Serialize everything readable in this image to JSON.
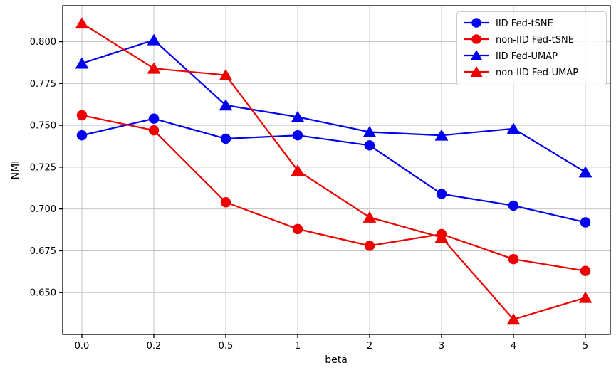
{
  "chart_data": {
    "type": "line",
    "title": "",
    "xlabel": "beta",
    "ylabel": "NMI",
    "categories": [
      "0.0",
      "0.2",
      "0.5",
      "1",
      "2",
      "3",
      "4",
      "5"
    ],
    "series": [
      {
        "name": "IID Fed-tSNE",
        "color": "#0000ee",
        "marker": "circle",
        "values": [
          0.744,
          0.754,
          0.742,
          0.744,
          0.738,
          0.709,
          0.702,
          0.692
        ]
      },
      {
        "name": "non-IID Fed-tSNE",
        "color": "#ee0000",
        "marker": "circle",
        "values": [
          0.756,
          0.747,
          0.704,
          0.688,
          0.678,
          0.685,
          0.67,
          0.663
        ]
      },
      {
        "name": "IID Fed-UMAP",
        "color": "#0000ee",
        "marker": "triangle",
        "values": [
          0.787,
          0.801,
          0.762,
          0.755,
          0.746,
          0.744,
          0.748,
          0.722
        ]
      },
      {
        "name": "non-IID Fed-UMAP",
        "color": "#ee0000",
        "marker": "triangle",
        "values": [
          0.811,
          0.784,
          0.78,
          0.723,
          0.695,
          0.683,
          0.634,
          0.647
        ]
      }
    ],
    "yticks": [
      "0.650",
      "0.675",
      "0.700",
      "0.725",
      "0.750",
      "0.775",
      "0.800"
    ],
    "ylim": [
      0.625,
      0.8215
    ],
    "grid": true,
    "legend_position": "upper right",
    "grid_color": "#c4c4c4",
    "spine_color": "#000000",
    "tick_label_color": "#000000"
  }
}
